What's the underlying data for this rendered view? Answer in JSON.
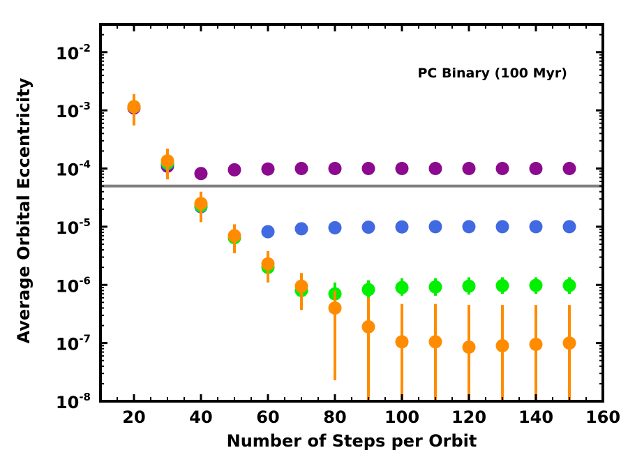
{
  "chart_data": {
    "type": "scatter",
    "title": "",
    "annotation": "PC Binary (100 Myr)",
    "xlabel": "Number of Steps per Orbit",
    "ylabel": "Average Orbital Eccentricity",
    "xlim": [
      10,
      160
    ],
    "ylim": [
      1e-08,
      0.03
    ],
    "yscale": "log",
    "xticks": [
      20,
      40,
      60,
      80,
      100,
      120,
      140,
      160
    ],
    "xtick_labels": [
      "20",
      "40",
      "60",
      "80",
      "100",
      "120",
      "140",
      "160"
    ],
    "yticks": [
      -8,
      -7,
      -6,
      -5,
      -4,
      -3,
      -2
    ],
    "ytick_base": "10",
    "ytick_exponents": [
      "-8",
      "-7",
      "-6",
      "-5",
      "-4",
      "-3",
      "-2"
    ],
    "reference_line": {
      "y": 5e-05,
      "color": "#808080"
    },
    "series": [
      {
        "name": "purple",
        "color": "#8B0A8E",
        "x": [
          20,
          30,
          40,
          50,
          60,
          70,
          80,
          90,
          100,
          110,
          120,
          130,
          140,
          150
        ],
        "y": [
          0.0011,
          0.00011,
          8.2e-05,
          9.5e-05,
          9.8e-05,
          0.0001,
          0.0001,
          0.0001,
          0.0001,
          0.0001,
          0.0001,
          0.0001,
          0.0001,
          0.0001
        ],
        "err_low": [
          null,
          null,
          null,
          null,
          null,
          null,
          null,
          null,
          null,
          null,
          null,
          null,
          null,
          null
        ],
        "err_high": [
          null,
          null,
          null,
          null,
          null,
          null,
          null,
          null,
          null,
          null,
          null,
          null,
          null,
          null
        ]
      },
      {
        "name": "blue",
        "color": "#4169E1",
        "x": [
          20,
          30,
          40,
          50,
          60,
          70,
          80,
          90,
          100,
          110,
          120,
          130,
          140,
          150
        ],
        "y": [
          0.00115,
          0.00012,
          2.2e-05,
          6.5e-06,
          8.2e-06,
          9.2e-06,
          9.6e-06,
          9.8e-06,
          9.9e-06,
          1e-05,
          1e-05,
          1e-05,
          1e-05,
          1e-05
        ],
        "err_low": [
          null,
          null,
          null,
          null,
          null,
          null,
          null,
          null,
          null,
          null,
          null,
          null,
          null,
          null
        ],
        "err_high": [
          null,
          null,
          null,
          null,
          null,
          null,
          null,
          null,
          null,
          null,
          null,
          null,
          null,
          null
        ]
      },
      {
        "name": "green",
        "color": "#00F000",
        "x": [
          20,
          30,
          40,
          50,
          60,
          70,
          80,
          90,
          100,
          110,
          120,
          130,
          140,
          150
        ],
        "y": [
          0.00115,
          0.000125,
          2.3e-05,
          6.5e-06,
          2e-06,
          8e-07,
          7e-07,
          8.3e-07,
          9e-07,
          9.2e-07,
          9.5e-07,
          9.7e-07,
          9.8e-07,
          9.8e-07
        ],
        "err_low": [
          null,
          null,
          1.2e-05,
          null,
          null,
          null,
          5e-07,
          6e-07,
          6.5e-07,
          6.5e-07,
          6.8e-07,
          7e-07,
          7e-07,
          7e-07
        ],
        "err_high": [
          null,
          null,
          3.5e-05,
          null,
          null,
          null,
          1.1e-06,
          1.2e-06,
          1.3e-06,
          1.3e-06,
          1.35e-06,
          1.35e-06,
          1.35e-06,
          1.35e-06
        ]
      },
      {
        "name": "orange",
        "color": "#FF8C00",
        "x": [
          20,
          30,
          40,
          50,
          60,
          70,
          80,
          90,
          100,
          110,
          120,
          130,
          140,
          150
        ],
        "y": [
          0.00115,
          0.000135,
          2.5e-05,
          7e-06,
          2.3e-06,
          9.5e-07,
          4e-07,
          1.9e-07,
          1.05e-07,
          1.05e-07,
          8.5e-08,
          9e-08,
          9.5e-08,
          1e-07
        ],
        "err_low": [
          0.00055,
          6.5e-05,
          1.2e-05,
          3.5e-06,
          1.1e-06,
          3.7e-07,
          2.3e-08,
          1e-08,
          1e-08,
          1e-08,
          1e-08,
          1e-08,
          1e-08,
          1e-08
        ],
        "err_high": [
          0.0019,
          0.00022,
          4e-05,
          1.1e-05,
          3.8e-06,
          1.6e-06,
          8e-07,
          6e-07,
          4.7e-07,
          4.7e-07,
          4.5e-07,
          4.5e-07,
          4.5e-07,
          4.5e-07
        ]
      }
    ]
  }
}
